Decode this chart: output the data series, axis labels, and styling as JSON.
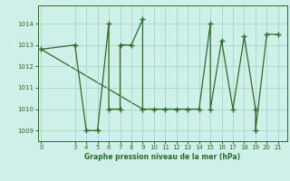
{
  "x": [
    0,
    3,
    4,
    5,
    6,
    6,
    7,
    7,
    8,
    9,
    9,
    10,
    11,
    12,
    13,
    14,
    15,
    15,
    16,
    17,
    18,
    19,
    19,
    20,
    21
  ],
  "y": [
    1012.8,
    1013.0,
    1009.0,
    1009.0,
    1014.0,
    1010.0,
    1010.0,
    1013.0,
    1013.0,
    1014.2,
    1010.0,
    1010.0,
    1010.0,
    1010.0,
    1010.0,
    1010.0,
    1014.0,
    1010.0,
    1013.2,
    1010.0,
    1013.4,
    1010.0,
    1009.0,
    1013.5,
    1013.5
  ],
  "trend_x": [
    0,
    9
  ],
  "trend_y": [
    1012.8,
    1010.0
  ],
  "bg_color": "#cff0e8",
  "line_color": "#2d6a2d",
  "grid_major_color": "#aad4c8",
  "grid_minor_color": "#c4e8e0",
  "yticks": [
    1009,
    1010,
    1011,
    1012,
    1013,
    1014
  ],
  "xticks": [
    0,
    3,
    4,
    5,
    6,
    7,
    8,
    9,
    10,
    11,
    12,
    13,
    14,
    15,
    16,
    17,
    18,
    19,
    20,
    21
  ],
  "xlim": [
    -0.3,
    21.8
  ],
  "ylim": [
    1008.5,
    1014.85
  ],
  "xlabel": "Graphe pression niveau de la mer (hPa)",
  "marker": "+",
  "markersize": 4,
  "markeredgewidth": 1.0,
  "linewidth": 0.9
}
